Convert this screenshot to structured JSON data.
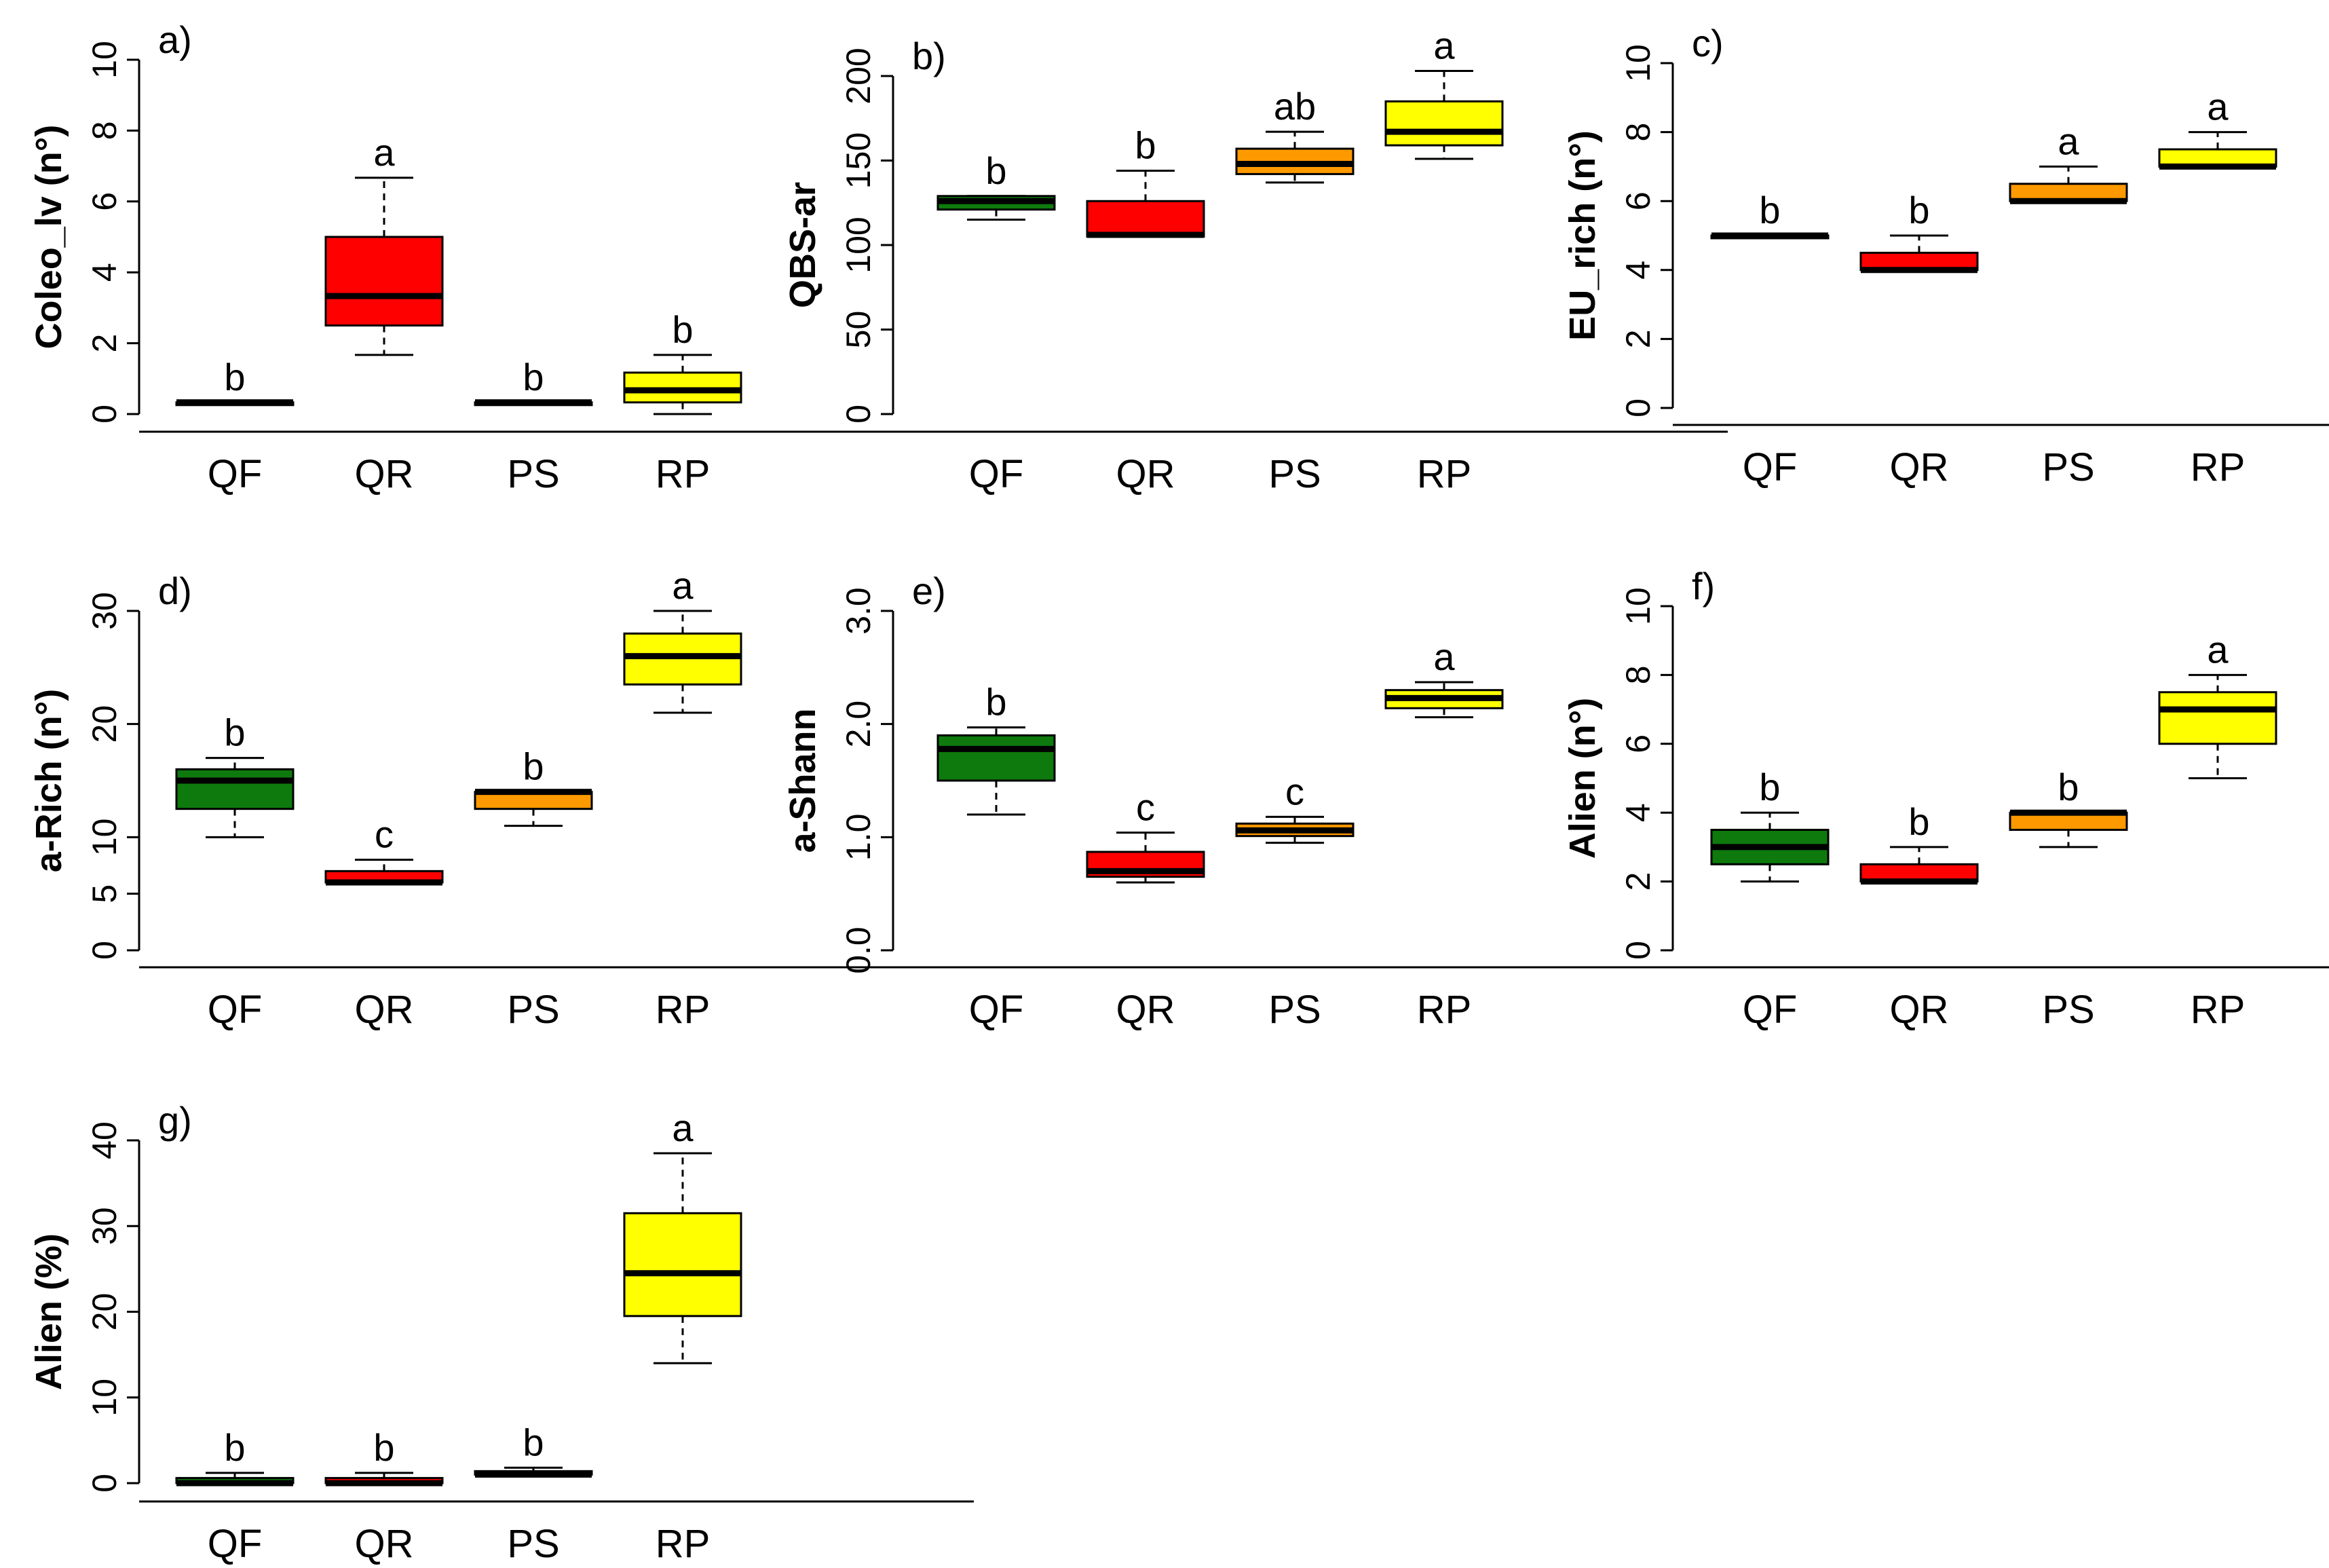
{
  "colors": {
    "QF": "#0e7a0d",
    "QR": "#ff0000",
    "PS": "#ff9900",
    "RP": "#ffff00",
    "line": "#000000"
  },
  "chart_data": [
    {
      "type": "boxplot",
      "panel": "a)",
      "ylabel": "Coleo_lv (n°)",
      "ylim": [
        0,
        10
      ],
      "yticks": [
        "0",
        "2",
        "4",
        "6",
        "8",
        "10"
      ],
      "categories": [
        "QF",
        "QR",
        "PS",
        "RP"
      ],
      "boxes": [
        {
          "category": "QF",
          "min": 0.33,
          "q1": 0.33,
          "median": 0.33,
          "q3": 0.33,
          "max": 0.33,
          "letter": "b"
        },
        {
          "category": "QR",
          "min": 1.67,
          "q1": 2.5,
          "median": 3.33,
          "q3": 5.0,
          "max": 6.67,
          "letter": "a"
        },
        {
          "category": "PS",
          "min": 0.33,
          "q1": 0.33,
          "median": 0.33,
          "q3": 0.33,
          "max": 0.33,
          "letter": "b"
        },
        {
          "category": "RP",
          "min": 0.0,
          "q1": 0.33,
          "median": 0.67,
          "q3": 1.17,
          "max": 1.67,
          "letter": "b"
        }
      ]
    },
    {
      "type": "boxplot",
      "panel": "b)",
      "ylabel": "QBS-ar",
      "ylim": [
        0,
        200
      ],
      "yticks": [
        "0",
        "50",
        "100",
        "150",
        "200"
      ],
      "categories": [
        "QF",
        "QR",
        "PS",
        "RP"
      ],
      "boxes": [
        {
          "category": "QF",
          "min": 115,
          "q1": 121,
          "median": 126,
          "q3": 129,
          "max": 129,
          "letter": "b"
        },
        {
          "category": "QR",
          "min": 105,
          "q1": 105,
          "median": 106,
          "q3": 126,
          "max": 144,
          "letter": "b"
        },
        {
          "category": "PS",
          "min": 137,
          "q1": 142,
          "median": 148,
          "q3": 157,
          "max": 167,
          "letter": "ab"
        },
        {
          "category": "RP",
          "min": 151,
          "q1": 159,
          "median": 167,
          "q3": 185,
          "max": 203,
          "letter": "a"
        }
      ]
    },
    {
      "type": "boxplot",
      "panel": "c)",
      "ylabel": "EU_rich (n°)",
      "ylim": [
        0,
        10
      ],
      "yticks": [
        "0",
        "2",
        "4",
        "6",
        "8",
        "10"
      ],
      "categories": [
        "QF",
        "QR",
        "PS",
        "RP"
      ],
      "boxes": [
        {
          "category": "QF",
          "min": 5,
          "q1": 5,
          "median": 5,
          "q3": 5,
          "max": 5,
          "letter": "b"
        },
        {
          "category": "QR",
          "min": 4,
          "q1": 4,
          "median": 4,
          "q3": 4.5,
          "max": 5,
          "letter": "b"
        },
        {
          "category": "PS",
          "min": 6,
          "q1": 6,
          "median": 6,
          "q3": 6.5,
          "max": 7,
          "letter": "a"
        },
        {
          "category": "RP",
          "min": 7,
          "q1": 7,
          "median": 7,
          "q3": 7.5,
          "max": 8,
          "letter": "a"
        }
      ]
    },
    {
      "type": "boxplot",
      "panel": "d)",
      "ylabel": "a-Rich (n°)",
      "ylim": [
        0,
        30
      ],
      "yticks": [
        "0",
        "5",
        "10",
        "20",
        "30"
      ],
      "ytick_values": [
        0,
        5,
        10,
        20,
        30
      ],
      "categories": [
        "QF",
        "QR",
        "PS",
        "RP"
      ],
      "boxes": [
        {
          "category": "QF",
          "min": 10,
          "q1": 12.5,
          "median": 15,
          "q3": 16,
          "max": 17,
          "letter": "b"
        },
        {
          "category": "QR",
          "min": 6,
          "q1": 6,
          "median": 6,
          "q3": 7,
          "max": 8,
          "letter": "c"
        },
        {
          "category": "PS",
          "min": 11,
          "q1": 12.5,
          "median": 14,
          "q3": 14,
          "max": 14,
          "letter": "b"
        },
        {
          "category": "RP",
          "min": 21,
          "q1": 23.5,
          "median": 26,
          "q3": 28,
          "max": 30,
          "letter": "a"
        }
      ]
    },
    {
      "type": "boxplot",
      "panel": "e)",
      "ylabel": "a-Shann",
      "ylim": [
        0,
        3
      ],
      "yticks": [
        "0.0",
        "1.0",
        "2.0",
        "3.0"
      ],
      "ytick_values": [
        0,
        1,
        2,
        3
      ],
      "categories": [
        "QF",
        "QR",
        "PS",
        "RP"
      ],
      "boxes": [
        {
          "category": "QF",
          "min": 1.2,
          "q1": 1.5,
          "median": 1.78,
          "q3": 1.9,
          "max": 1.97,
          "letter": "b"
        },
        {
          "category": "QR",
          "min": 0.6,
          "q1": 0.65,
          "median": 0.7,
          "q3": 0.87,
          "max": 1.04,
          "letter": "c"
        },
        {
          "category": "PS",
          "min": 0.95,
          "q1": 1.01,
          "median": 1.06,
          "q3": 1.12,
          "max": 1.18,
          "letter": "c"
        },
        {
          "category": "RP",
          "min": 2.06,
          "q1": 2.14,
          "median": 2.23,
          "q3": 2.3,
          "max": 2.37,
          "letter": "a"
        }
      ]
    },
    {
      "type": "boxplot",
      "panel": "f)",
      "ylabel": "Alien  (n°)",
      "ylim": [
        0,
        10
      ],
      "yticks": [
        "0",
        "2",
        "4",
        "6",
        "8",
        "10"
      ],
      "categories": [
        "QF",
        "QR",
        "PS",
        "RP"
      ],
      "boxes": [
        {
          "category": "QF",
          "min": 2,
          "q1": 2.5,
          "median": 3,
          "q3": 3.5,
          "max": 4,
          "letter": "b"
        },
        {
          "category": "QR",
          "min": 2,
          "q1": 2,
          "median": 2,
          "q3": 2.5,
          "max": 3,
          "letter": "b"
        },
        {
          "category": "PS",
          "min": 3,
          "q1": 3.5,
          "median": 4,
          "q3": 4,
          "max": 4,
          "letter": "b"
        },
        {
          "category": "RP",
          "min": 5,
          "q1": 6,
          "median": 7,
          "q3": 7.5,
          "max": 8,
          "letter": "a"
        }
      ]
    },
    {
      "type": "boxplot",
      "panel": "g)",
      "ylabel": "Alien (%)",
      "ylim": [
        0,
        40
      ],
      "yticks": [
        "0",
        "10",
        "20",
        "30",
        "40"
      ],
      "categories": [
        "QF",
        "QR",
        "PS",
        "RP"
      ],
      "boxes": [
        {
          "category": "QF",
          "min": 0,
          "q1": 0,
          "median": 0,
          "q3": 0.6,
          "max": 1.2,
          "letter": "b"
        },
        {
          "category": "QR",
          "min": 0,
          "q1": 0,
          "median": 0,
          "q3": 0.6,
          "max": 1.2,
          "letter": "b"
        },
        {
          "category": "PS",
          "min": 1.0,
          "q1": 1.0,
          "median": 1.0,
          "q3": 1.4,
          "max": 1.8,
          "letter": "b"
        },
        {
          "category": "RP",
          "min": 14,
          "q1": 19.5,
          "median": 24.5,
          "q3": 31.5,
          "max": 38.5,
          "letter": "a"
        }
      ]
    }
  ]
}
